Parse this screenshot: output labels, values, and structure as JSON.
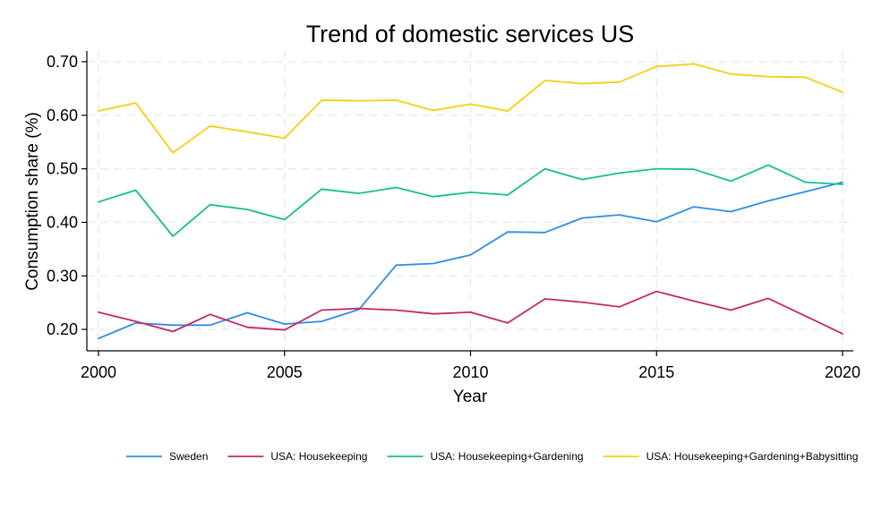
{
  "chart_data": {
    "type": "line",
    "title": "Trend of domestic services US",
    "xlabel": "Year",
    "ylabel": "Consumption share (%)",
    "xlim": [
      2000,
      2020
    ],
    "ylim": [
      0.16,
      0.72
    ],
    "x_ticks": [
      2000,
      2005,
      2010,
      2015,
      2020
    ],
    "x_tick_labels": [
      "2000",
      "2005",
      "2010",
      "2015",
      "2020"
    ],
    "y_ticks": [
      0.2,
      0.3,
      0.4,
      0.5,
      0.6,
      0.7
    ],
    "y_tick_labels": [
      "0.20",
      "0.30",
      "0.40",
      "0.50",
      "0.60",
      "0.70"
    ],
    "grid": true,
    "legend_position": "bottom",
    "x": [
      2000,
      2001,
      2002,
      2003,
      2004,
      2005,
      2006,
      2007,
      2008,
      2009,
      2010,
      2011,
      2012,
      2013,
      2014,
      2015,
      2016,
      2017,
      2018,
      2019,
      2020
    ],
    "series": [
      {
        "name": "Sweden",
        "color": "#2f8de4",
        "values": [
          0.183,
          0.212,
          0.208,
          0.208,
          0.231,
          0.21,
          0.215,
          0.237,
          0.32,
          0.323,
          0.339,
          0.382,
          0.381,
          0.408,
          0.414,
          0.401,
          0.429,
          0.42,
          0.44,
          0.457,
          0.475
        ]
      },
      {
        "name": "USA: Housekeeping",
        "color": "#c4286a",
        "values": [
          0.232,
          0.215,
          0.196,
          0.228,
          0.204,
          0.199,
          0.236,
          0.239,
          0.236,
          0.229,
          0.232,
          0.212,
          0.257,
          0.251,
          0.242,
          0.271,
          0.253,
          0.236,
          0.258,
          0.225,
          0.192
        ]
      },
      {
        "name": "USA: Housekeeping+Gardening",
        "color": "#16c08a",
        "values": [
          0.438,
          0.46,
          0.374,
          0.433,
          0.424,
          0.405,
          0.462,
          0.454,
          0.465,
          0.448,
          0.456,
          0.451,
          0.5,
          0.48,
          0.492,
          0.5,
          0.499,
          0.477,
          0.507,
          0.475,
          0.471
        ]
      },
      {
        "name": "USA: Housekeeping+Gardening+Babysitting",
        "color": "#f5cf14",
        "values": [
          0.608,
          0.623,
          0.53,
          0.58,
          0.569,
          0.557,
          0.628,
          0.627,
          0.628,
          0.609,
          0.621,
          0.608,
          0.665,
          0.659,
          0.662,
          0.691,
          0.696,
          0.677,
          0.672,
          0.671,
          0.643
        ]
      }
    ]
  }
}
